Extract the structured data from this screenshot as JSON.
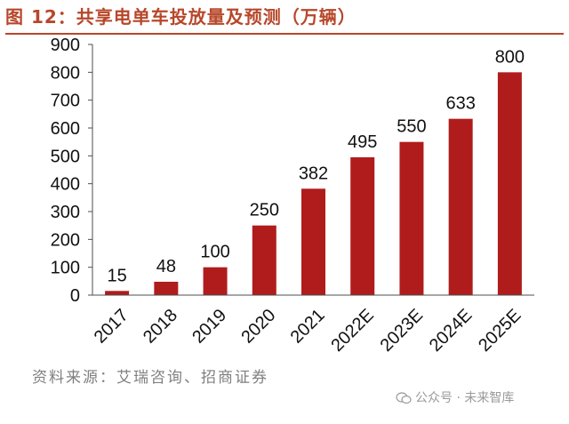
{
  "header": {
    "title": "图 12：共享电单车投放量及预测（万辆）"
  },
  "footer": {
    "source": "资料来源：艾瑞咨询、招商证券",
    "watermark": "公众号 · 未来智库"
  },
  "colors": {
    "bar": "#b01c1c",
    "title": "#b7472a",
    "axis": "#4d4d4d"
  },
  "chart_data": {
    "type": "bar",
    "title": "共享电单车投放量及预测（万辆）",
    "xlabel": "",
    "ylabel": "",
    "ylim": [
      0,
      900
    ],
    "yticks": [
      0,
      100,
      200,
      300,
      400,
      500,
      600,
      700,
      800,
      900
    ],
    "grid": false,
    "legend": "none",
    "categories": [
      "2017",
      "2018",
      "2019",
      "2020",
      "2021",
      "2022E",
      "2023E",
      "2024E",
      "2025E"
    ],
    "values": [
      15,
      48,
      100,
      250,
      382,
      495,
      550,
      633,
      800
    ]
  }
}
